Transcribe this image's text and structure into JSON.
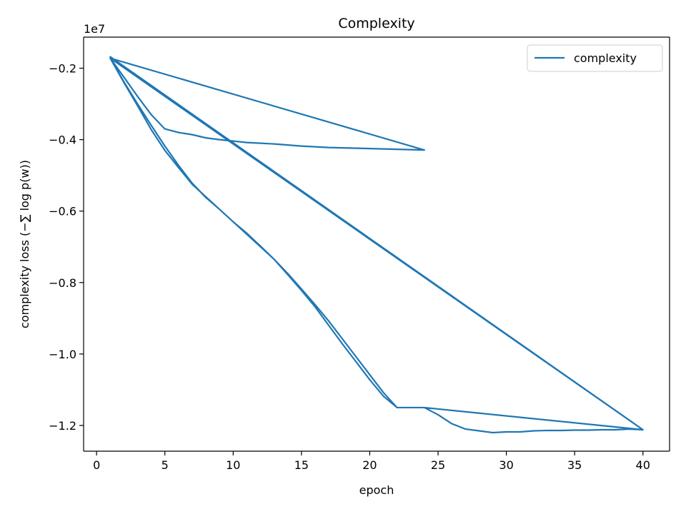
{
  "chart_data": {
    "type": "line",
    "title": "Complexity",
    "xlabel": "epoch",
    "ylabel": "complexity loss (−∑ log p(w))",
    "offset_text": "1e7",
    "xlim": [
      -0.95,
      41.95
    ],
    "ylim": [
      -12.72,
      -1.13
    ],
    "x_ticks": [
      0,
      5,
      10,
      15,
      20,
      25,
      30,
      35,
      40
    ],
    "x_tick_labels": [
      "0",
      "5",
      "10",
      "15",
      "20",
      "25",
      "30",
      "35",
      "40"
    ],
    "y_ticks": [
      -12,
      -10,
      -8,
      -6,
      -4,
      -2
    ],
    "y_tick_labels": [
      "−1.2",
      "−1.0",
      "−0.8",
      "−0.6",
      "−0.4",
      "−0.2"
    ],
    "grid": false,
    "legend_position": "top-right",
    "series": [
      {
        "name": "complexity",
        "color": "#1f77b4",
        "x": [
          1,
          2,
          3,
          4,
          5,
          6,
          7,
          8,
          9,
          10,
          11,
          12,
          13,
          14,
          15,
          16,
          17,
          18,
          19,
          20,
          21,
          22,
          23,
          24,
          25,
          26,
          27,
          28,
          29,
          30,
          31,
          32,
          33,
          34,
          35,
          36,
          37,
          38,
          39,
          40,
          1,
          2,
          3,
          4,
          5,
          6,
          7,
          8,
          9,
          10,
          11,
          12,
          13,
          14,
          15,
          16,
          17,
          18,
          19,
          20,
          21,
          22,
          23,
          24,
          1,
          2,
          3,
          4,
          5,
          6,
          7,
          8,
          9,
          10,
          11,
          12,
          13,
          14,
          15,
          16,
          17,
          18,
          19,
          20,
          21,
          22,
          23,
          24,
          40,
          1,
          40
        ],
        "y": [
          -1.72,
          -2.38,
          -3.0,
          -3.6,
          -4.18,
          -4.72,
          -5.22,
          -5.62,
          -5.95,
          -6.3,
          -6.62,
          -6.98,
          -7.35,
          -7.78,
          -8.22,
          -8.68,
          -9.2,
          -9.72,
          -10.22,
          -10.72,
          -11.18,
          -11.5,
          -11.5,
          -11.5,
          -11.7,
          -11.95,
          -12.1,
          -12.15,
          -12.2,
          -12.18,
          -12.18,
          -12.15,
          -12.14,
          -12.14,
          -12.13,
          -12.13,
          -12.12,
          -12.12,
          -12.1,
          -12.12,
          -1.72,
          -2.25,
          -2.79,
          -3.3,
          -3.7,
          -3.8,
          -3.86,
          -3.95,
          -4.0,
          -4.04,
          -4.08,
          -4.1,
          -4.12,
          -4.15,
          -4.18,
          -4.2,
          -4.22,
          -4.23,
          -4.24,
          -4.25,
          -4.26,
          -4.27,
          -4.28,
          -4.29,
          -1.72,
          -2.4,
          -3.05,
          -3.72,
          -4.3,
          -4.78,
          -5.25,
          -5.6,
          -5.95,
          -6.3,
          -6.65,
          -7.0,
          -7.35,
          -7.75,
          -8.18,
          -8.62,
          -9.08,
          -9.58,
          -10.08,
          -10.58,
          -11.08,
          -11.5,
          -11.5,
          -11.5,
          -12.12,
          -1.68,
          -12.12
        ]
      }
    ]
  }
}
